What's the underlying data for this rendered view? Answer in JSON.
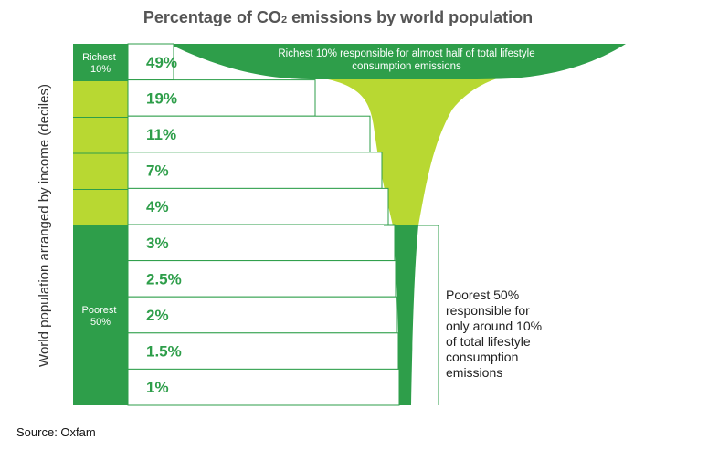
{
  "chart_data": {
    "type": "funnel",
    "title_main": "Percentage of CO",
    "title_sub": "2",
    "title_rest": " emissions by world population",
    "ylabel": "World population arranged by income (deciles)",
    "categories": [
      "Richest 10%",
      "",
      "",
      "",
      "",
      "",
      "",
      "",
      "",
      "Poorest"
    ],
    "values": [
      49,
      19,
      11,
      7,
      4,
      3,
      2.5,
      2,
      1.5,
      1
    ],
    "value_labels": [
      "49%",
      "19%",
      "11%",
      "7%",
      "4%",
      "3%",
      "2.5%",
      "2%",
      "1.5%",
      "1%"
    ],
    "group_labels": {
      "richest": [
        "Richest",
        "10%"
      ],
      "poorest": [
        "Poorest",
        "50%"
      ]
    },
    "annotations": {
      "richest": [
        "Richest 10% responsible for almost half of total lifestyle",
        "consumption emissions"
      ],
      "poorest": [
        "Poorest 50%",
        "responsible for",
        "only around 10%",
        "of total lifestyle",
        "consumption",
        "emissions"
      ]
    },
    "source": "Source: Oxfam",
    "colors": {
      "dark_green": "#2e9e4a",
      "light_green": "#b8d832",
      "text_green": "#2e9e4a",
      "row_border": "#2e9e4a"
    }
  }
}
